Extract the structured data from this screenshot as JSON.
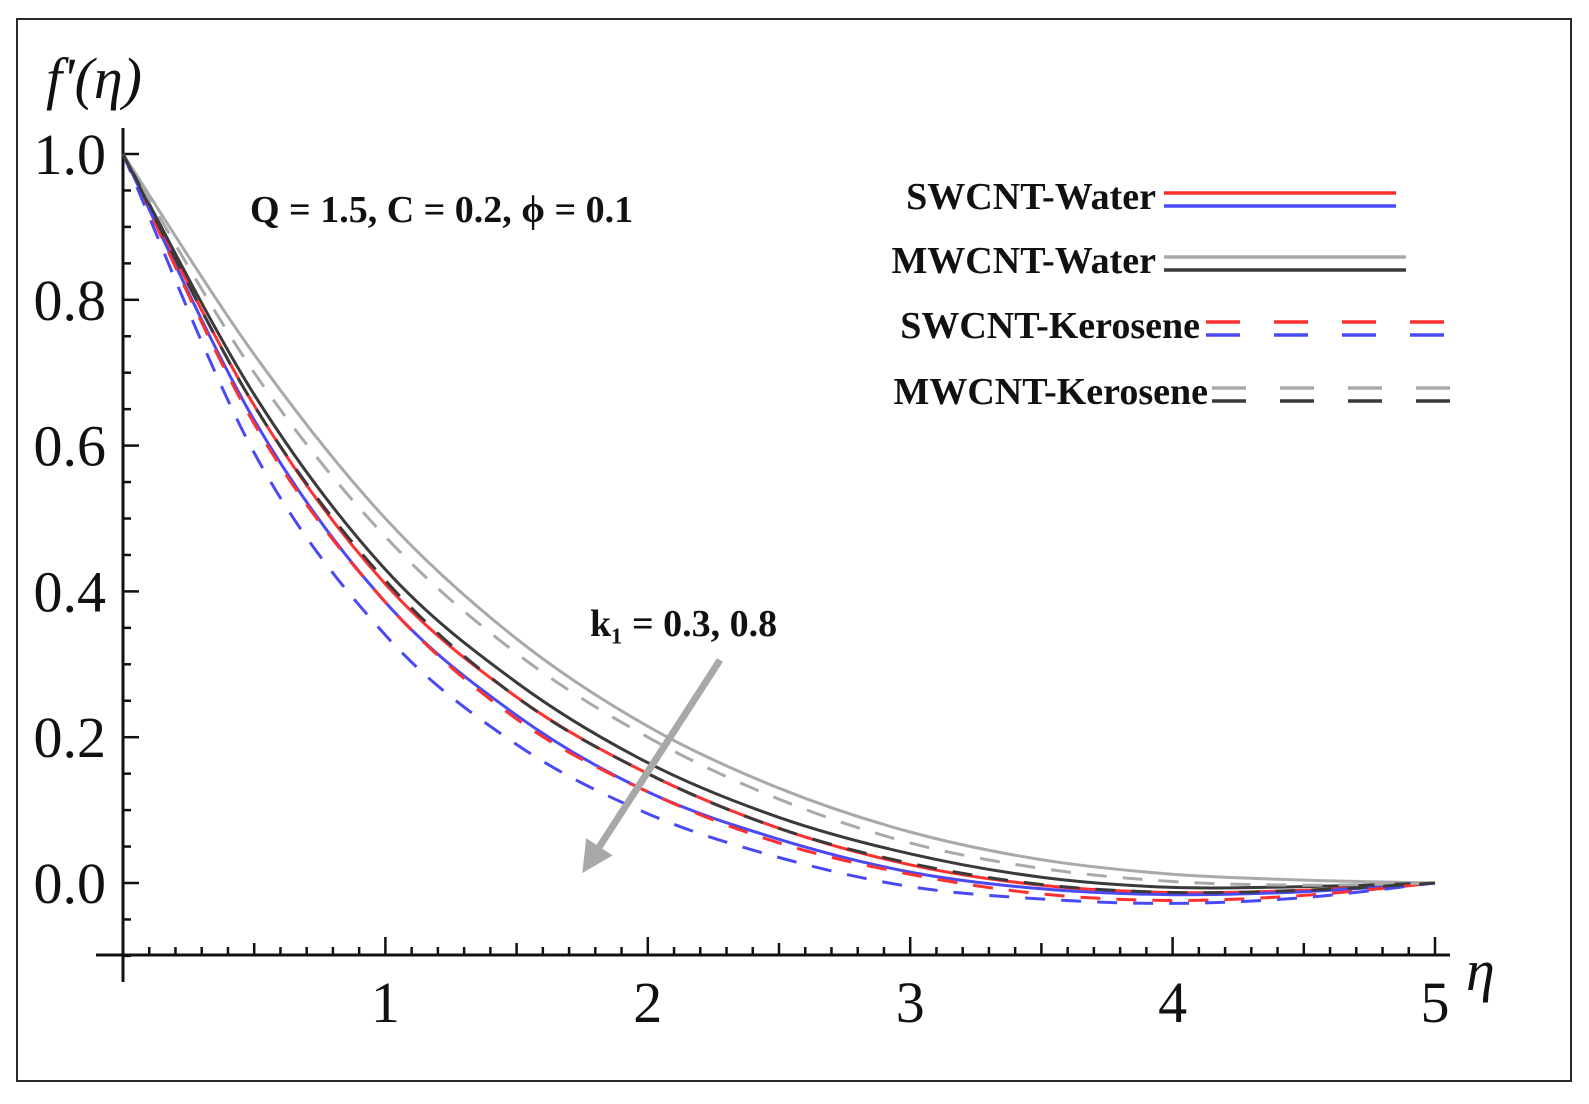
{
  "chart_data": {
    "type": "line",
    "xlabel": "η",
    "ylabel": "f'(η)",
    "xlim": [
      0,
      5
    ],
    "ylim": [
      -0.1,
      1.0
    ],
    "x_ticks": [
      1,
      2,
      3,
      4,
      5
    ],
    "x_tick_labels": [
      "1",
      "2",
      "3",
      "4",
      "5"
    ],
    "y_ticks": [
      0.0,
      0.2,
      0.4,
      0.6,
      0.8,
      1.0
    ],
    "y_tick_labels": [
      "0.0",
      "0.2",
      "0.4",
      "0.6",
      "0.8",
      "1.0"
    ],
    "grid": false,
    "legend_position": "top-right",
    "annotations": {
      "params": "Q = 1.5, C = 0.2, ϕ = 0.1",
      "k_label": "k₁ = 0.3, 0.8"
    },
    "legend": [
      {
        "label": "SWCNT-Water",
        "style": "solid",
        "colors": [
          "#ff3030",
          "#4a4af5"
        ]
      },
      {
        "label": "MWCNT-Water",
        "style": "solid",
        "colors": [
          "#a9a9a9",
          "#3a3a3a"
        ]
      },
      {
        "label": "SWCNT-Kerosene",
        "style": "dashed",
        "colors": [
          "#ff3030",
          "#4a4af5"
        ]
      },
      {
        "label": "MWCNT-Kerosene",
        "style": "dashed",
        "colors": [
          "#a9a9a9",
          "#3a3a3a"
        ]
      }
    ],
    "x": [
      0,
      0.5,
      1,
      1.5,
      2,
      2.5,
      3,
      3.5,
      4,
      4.5,
      5
    ],
    "series": [
      {
        "group": "SWCNT-Water",
        "k1": 0.3,
        "color": "#ff3030",
        "style": "solid",
        "values": [
          1.0,
          0.655,
          0.41,
          0.255,
          0.15,
          0.075,
          0.025,
          -0.003,
          -0.013,
          -0.01,
          0.0
        ]
      },
      {
        "group": "SWCNT-Water",
        "k1": 0.8,
        "color": "#4a4af5",
        "style": "solid",
        "values": [
          1.0,
          0.635,
          0.385,
          0.23,
          0.125,
          0.06,
          0.015,
          -0.008,
          -0.016,
          -0.012,
          0.0
        ]
      },
      {
        "group": "MWCNT-Water",
        "k1": 0.3,
        "color": "#a9a9a9",
        "style": "solid",
        "values": [
          1.0,
          0.725,
          0.5,
          0.335,
          0.215,
          0.13,
          0.07,
          0.032,
          0.012,
          0.004,
          0.0
        ]
      },
      {
        "group": "MWCNT-Water",
        "k1": 0.8,
        "color": "#3a3a3a",
        "style": "solid",
        "values": [
          1.0,
          0.67,
          0.43,
          0.275,
          0.165,
          0.09,
          0.04,
          0.008,
          -0.006,
          -0.005,
          0.0
        ]
      },
      {
        "group": "SWCNT-Kerosene",
        "k1": 0.3,
        "color": "#ff3030",
        "style": "dashed",
        "values": [
          1.0,
          0.63,
          0.385,
          0.225,
          0.125,
          0.055,
          0.012,
          -0.015,
          -0.024,
          -0.017,
          0.0
        ]
      },
      {
        "group": "SWCNT-Kerosene",
        "k1": 0.8,
        "color": "#4a4af5",
        "style": "dashed",
        "values": [
          1.0,
          0.59,
          0.34,
          0.19,
          0.095,
          0.035,
          -0.005,
          -0.022,
          -0.028,
          -0.02,
          0.0
        ]
      },
      {
        "group": "MWCNT-Kerosene",
        "k1": 0.3,
        "color": "#a9a9a9",
        "style": "dashed",
        "values": [
          1.0,
          0.7,
          0.475,
          0.315,
          0.2,
          0.115,
          0.055,
          0.02,
          0.002,
          -0.003,
          0.0
        ]
      },
      {
        "group": "MWCNT-Kerosene",
        "k1": 0.8,
        "color": "#3a3a3a",
        "style": "dashed",
        "values": [
          1.0,
          0.655,
          0.415,
          0.255,
          0.15,
          0.075,
          0.027,
          -0.002,
          -0.013,
          -0.01,
          0.0
        ]
      }
    ]
  }
}
